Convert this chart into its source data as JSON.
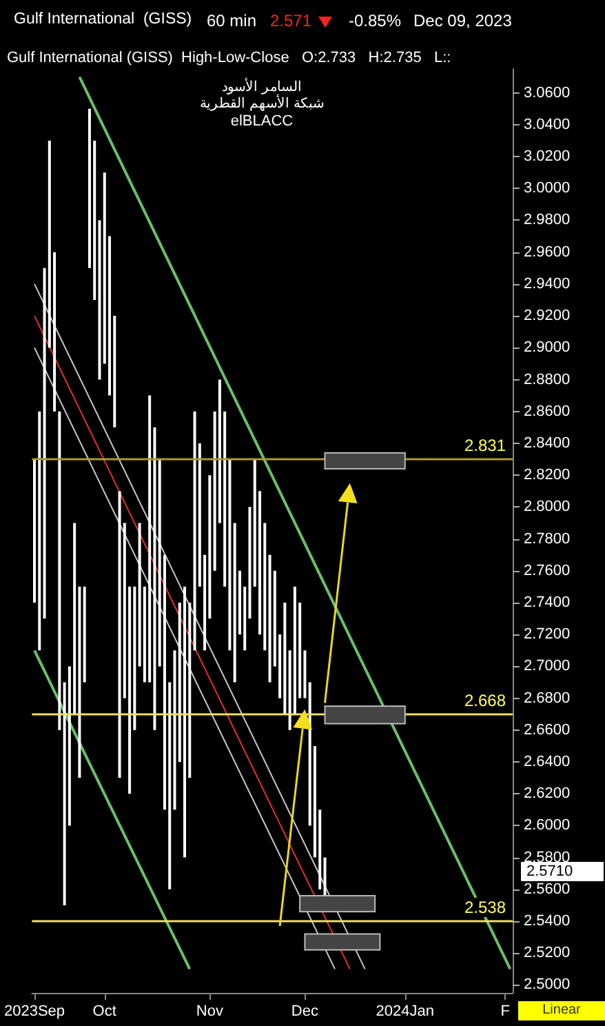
{
  "chart_data": {
    "type": "bar",
    "title": "Gulf International  (GISS)",
    "subtitle": "Gulf International (GISS)  High-Low-Close   O:2.733   H:2.735   L::",
    "annotations": [
      "60 min",
      "2.571",
      "-0.85%",
      "Dec 09, 2023",
      "السامر الأسود",
      "شبكة الأسهم القطرية",
      "elBLACC",
      "2.5710",
      "Linear"
    ],
    "categories": [
      "2023Sep",
      null,
      null,
      null,
      null,
      null,
      null,
      null,
      null,
      null,
      null,
      null,
      null,
      null,
      "Oct",
      null,
      null,
      null,
      null,
      null,
      null,
      null,
      null,
      null,
      null,
      null,
      null,
      null,
      null,
      null,
      null,
      null,
      null,
      null,
      null,
      "Nov",
      null,
      null,
      null,
      null,
      null,
      null,
      null,
      null,
      null,
      null,
      null,
      null,
      null,
      null,
      null,
      null,
      null,
      null,
      "Dec",
      null,
      null,
      null,
      null,
      null,
      null,
      null,
      null,
      null,
      null,
      null,
      null,
      null,
      null,
      null,
      null,
      null,
      null,
      null,
      "2024Jan",
      null,
      null,
      null,
      null,
      null,
      null,
      null,
      null,
      null,
      null,
      null,
      null,
      null,
      null,
      null,
      null,
      null,
      null,
      null,
      "F",
      null
    ],
    "series": [
      {
        "color": "#ffffff",
        "base": [
          2.74,
          2.71,
          2.73,
          2.9,
          2.86,
          2.66,
          2.55,
          2.6,
          2.67,
          2.63,
          2.69,
          2.95,
          2.93,
          2.88,
          2.89,
          2.87,
          2.85,
          2.63,
          2.68,
          2.62,
          2.66,
          2.7,
          2.69,
          2.69,
          2.66,
          2.7,
          2.61,
          2.56,
          2.61,
          2.64,
          2.58,
          2.63,
          2.71,
          2.75,
          2.71,
          2.73,
          2.76,
          2.79,
          2.75,
          2.71,
          2.69,
          2.72,
          2.71,
          2.73,
          2.75,
          2.72,
          2.71,
          2.69,
          2.7,
          2.68,
          2.67,
          2.66,
          2.67,
          2.68,
          2.68,
          2.6,
          2.58,
          2.56,
          2.55,
          null,
          null,
          null,
          null,
          null,
          null,
          null,
          null,
          null,
          null,
          null,
          null,
          null,
          null,
          null,
          null,
          null,
          null,
          null,
          null,
          null,
          null,
          null,
          null,
          null,
          null,
          null,
          null,
          null,
          null,
          null,
          null,
          null,
          null,
          null,
          null,
          null
        ],
        "values": [
          0.09,
          0.15,
          0.22,
          0.13,
          0.1,
          0.2,
          0.14,
          0.1,
          0.12,
          0.12,
          0.06,
          0.1,
          0.1,
          0.1,
          0.12,
          0.1,
          0.07,
          0.18,
          0.11,
          0.13,
          0.09,
          0.09,
          0.06,
          0.18,
          0.19,
          0.13,
          0.16,
          0.13,
          0.1,
          0.1,
          0.17,
          0.11,
          0.15,
          0.09,
          0.06,
          0.09,
          0.1,
          0.09,
          0.11,
          0.12,
          0.1,
          0.04,
          0.04,
          0.07,
          0.08,
          0.09,
          0.08,
          0.08,
          0.06,
          0.04,
          0.07,
          0.05,
          0.08,
          0.06,
          0.03,
          0.09,
          0.07,
          0.05,
          0.03,
          null,
          null,
          null,
          null,
          null,
          null,
          null,
          null,
          null,
          null,
          null,
          null,
          null,
          null,
          null,
          null,
          null,
          null,
          null,
          null,
          null,
          null,
          null,
          null,
          null,
          null,
          null,
          null,
          null,
          null,
          null,
          null,
          null,
          null,
          null,
          null,
          null
        ]
      },
      {
        "type": "line",
        "color": "#6abf69",
        "values": [
          null,
          null,
          null,
          null,
          null,
          null,
          null,
          null,
          null,
          3.07,
          null,
          null,
          null,
          null,
          null,
          null,
          null,
          null,
          null,
          null,
          null,
          null,
          null,
          null,
          null,
          null,
          null,
          null,
          null,
          null,
          null,
          null,
          null,
          null,
          null,
          null,
          null,
          null,
          null,
          null,
          null,
          null,
          null,
          null,
          null,
          null,
          null,
          null,
          null,
          null,
          null,
          null,
          null,
          null,
          null,
          null,
          null,
          null,
          null,
          null,
          null,
          null,
          null,
          null,
          null,
          null,
          null,
          null,
          null,
          null,
          null,
          null,
          null,
          null,
          null,
          null,
          null,
          null,
          null,
          null,
          null,
          null,
          null,
          null,
          null,
          null,
          null,
          null,
          null,
          null,
          null,
          null,
          null,
          null,
          null,
          2.51
        ]
      },
      {
        "type": "line",
        "color": "#6abf69",
        "values": [
          2.71,
          null,
          null,
          null,
          null,
          null,
          null,
          null,
          null,
          null,
          null,
          null,
          null,
          null,
          null,
          null,
          null,
          null,
          null,
          null,
          null,
          null,
          null,
          null,
          null,
          null,
          null,
          null,
          null,
          null,
          null,
          2.51,
          null,
          null,
          null,
          null,
          null,
          null,
          null,
          null,
          null,
          null,
          null,
          null,
          null,
          null,
          null,
          null,
          null,
          null,
          null,
          null,
          null,
          null,
          null,
          null,
          null,
          null,
          null,
          null,
          null,
          null,
          null,
          null,
          null,
          null,
          null,
          null,
          null,
          null,
          null,
          null,
          null,
          null,
          null,
          null,
          null,
          null,
          null,
          null,
          null,
          null,
          null,
          null,
          null,
          null,
          null,
          null,
          null,
          null,
          null,
          null,
          null,
          null,
          null,
          null
        ]
      },
      {
        "type": "line",
        "color": "#c8c8c8",
        "values": [
          2.94,
          null,
          null,
          null,
          null,
          null,
          null,
          null,
          null,
          null,
          null,
          null,
          null,
          null,
          null,
          null,
          null,
          null,
          null,
          null,
          null,
          null,
          null,
          null,
          null,
          null,
          null,
          null,
          null,
          null,
          null,
          null,
          null,
          null,
          null,
          null,
          null,
          null,
          null,
          null,
          null,
          null,
          null,
          null,
          null,
          null,
          null,
          null,
          null,
          null,
          null,
          null,
          null,
          null,
          null,
          null,
          null,
          null,
          null,
          null,
          null,
          null,
          null,
          null,
          null,
          null,
          2.51,
          null,
          null,
          null,
          null,
          null,
          null,
          null,
          null,
          null,
          null,
          null,
          null,
          null,
          null,
          null,
          null,
          null,
          null,
          null,
          null,
          null,
          null,
          null,
          null,
          null,
          null,
          null,
          null,
          null
        ]
      },
      {
        "type": "line",
        "color": "#e03030",
        "values": [
          2.92,
          null,
          null,
          null,
          null,
          null,
          null,
          null,
          null,
          null,
          null,
          null,
          null,
          null,
          null,
          null,
          null,
          null,
          null,
          null,
          null,
          null,
          null,
          null,
          null,
          null,
          null,
          null,
          null,
          null,
          null,
          null,
          null,
          null,
          null,
          null,
          null,
          null,
          null,
          null,
          null,
          null,
          null,
          null,
          null,
          null,
          null,
          null,
          null,
          null,
          null,
          null,
          null,
          null,
          null,
          null,
          null,
          null,
          null,
          null,
          null,
          null,
          null,
          2.51,
          null,
          null,
          null,
          null,
          null,
          null,
          null,
          null,
          null,
          null,
          null,
          null,
          null,
          null,
          null,
          null,
          null,
          null,
          null,
          null,
          null,
          null,
          null,
          null,
          null,
          null,
          null,
          null,
          null,
          null,
          null,
          null
        ]
      },
      {
        "type": "line",
        "color": "#c8c8c8",
        "values": [
          2.9,
          null,
          null,
          null,
          null,
          null,
          null,
          null,
          null,
          null,
          null,
          null,
          null,
          null,
          null,
          null,
          null,
          null,
          null,
          null,
          null,
          null,
          null,
          null,
          null,
          null,
          null,
          null,
          null,
          null,
          null,
          null,
          null,
          null,
          null,
          null,
          null,
          null,
          null,
          null,
          null,
          null,
          null,
          null,
          null,
          null,
          null,
          null,
          null,
          null,
          null,
          null,
          null,
          null,
          null,
          null,
          null,
          null,
          null,
          null,
          2.51,
          null,
          null,
          null,
          null,
          null,
          null,
          null,
          null,
          null,
          null,
          null,
          null,
          null,
          null,
          null,
          null,
          null,
          null,
          null,
          null,
          null,
          null,
          null,
          null,
          null,
          null,
          null,
          null,
          null,
          null,
          null,
          null,
          null,
          null,
          null
        ]
      }
    ],
    "ylim": [
      2.495,
      3.075
    ],
    "yticks": [
      {
        "value": 2.5,
        "label": "2.5000"
      },
      {
        "value": 2.52,
        "label": "2.5200"
      },
      {
        "value": 2.54,
        "label": "2.5400"
      },
      {
        "value": 2.56,
        "label": "2.5600"
      },
      {
        "value": 2.58,
        "label": "2.5800"
      },
      {
        "value": 2.6,
        "label": "2.6000"
      },
      {
        "value": 2.62,
        "label": "2.6200"
      },
      {
        "value": 2.64,
        "label": "2.6400"
      },
      {
        "value": 2.66,
        "label": "2.6600"
      },
      {
        "value": 2.68,
        "label": "2.6800"
      },
      {
        "value": 2.7,
        "label": "2.7000"
      },
      {
        "value": 2.72,
        "label": "2.7200"
      },
      {
        "value": 2.74,
        "label": "2.7400"
      },
      {
        "value": 2.76,
        "label": "2.7600"
      },
      {
        "value": 2.78,
        "label": "2.7800"
      },
      {
        "value": 2.8,
        "label": "2.8000"
      },
      {
        "value": 2.82,
        "label": "2.8200"
      },
      {
        "value": 2.84,
        "label": "2.8400"
      },
      {
        "value": 2.86,
        "label": "2.8600"
      },
      {
        "value": 2.88,
        "label": "2.8800"
      },
      {
        "value": 2.9,
        "label": "2.9000"
      },
      {
        "value": 2.92,
        "label": "2.9200"
      },
      {
        "value": 2.94,
        "label": "2.9400"
      },
      {
        "value": 2.96,
        "label": "2.9600"
      },
      {
        "value": 2.98,
        "label": "2.9800"
      },
      {
        "value": 3.0,
        "label": "3.0000"
      },
      {
        "value": 3.02,
        "label": "3.0200"
      },
      {
        "value": 3.04,
        "label": "3.0400"
      },
      {
        "value": 3.06,
        "label": "3.0600"
      }
    ],
    "ref_lines": [
      {
        "axis": "y",
        "value": 2.831,
        "label": "2.831",
        "color": "#a89c2c"
      },
      {
        "axis": "y",
        "value": 2.668,
        "label": "2.668",
        "color": "#f0e060"
      },
      {
        "axis": "y",
        "value": 2.538,
        "label": "2.538",
        "color": "#f0e060"
      }
    ],
    "grid": false,
    "marker": "none",
    "line_style": "solid"
  }
}
